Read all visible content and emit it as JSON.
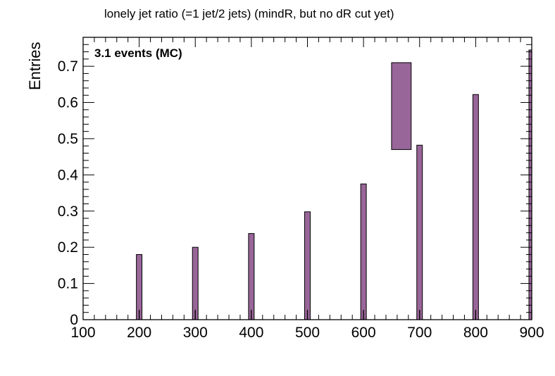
{
  "chart_data": {
    "type": "bar",
    "title": "lonely jet ratio (=1 jet/2 jets) (mindR, but no dR cut yet)",
    "ylabel": "Entries",
    "xlabel": "",
    "annotation": "3.1 events (MC)",
    "xlim": [
      100,
      900
    ],
    "ylim": [
      0,
      0.78
    ],
    "x_ticks": [
      100,
      200,
      300,
      400,
      500,
      600,
      700,
      800,
      900
    ],
    "y_ticks": [
      0,
      0.1,
      0.2,
      0.3,
      0.4,
      0.5,
      0.6,
      0.7
    ],
    "bar_color": "#996699",
    "bars": [
      {
        "x_low": 195,
        "x_high": 205,
        "value": 0.18
      },
      {
        "x_low": 295,
        "x_high": 305,
        "value": 0.2
      },
      {
        "x_low": 395,
        "x_high": 405,
        "value": 0.238
      },
      {
        "x_low": 495,
        "x_high": 505,
        "value": 0.298
      },
      {
        "x_low": 595,
        "x_high": 605,
        "value": 0.375
      },
      {
        "x_low": 695,
        "x_high": 705,
        "value": 0.482
      },
      {
        "x_low": 795,
        "x_high": 805,
        "value": 0.622
      },
      {
        "x_low": 895,
        "x_high": 905,
        "value": 0.745
      }
    ],
    "box": {
      "x_low": 650,
      "x_high": 685,
      "y_low": 0.47,
      "y_high": 0.71
    },
    "grid": false
  }
}
